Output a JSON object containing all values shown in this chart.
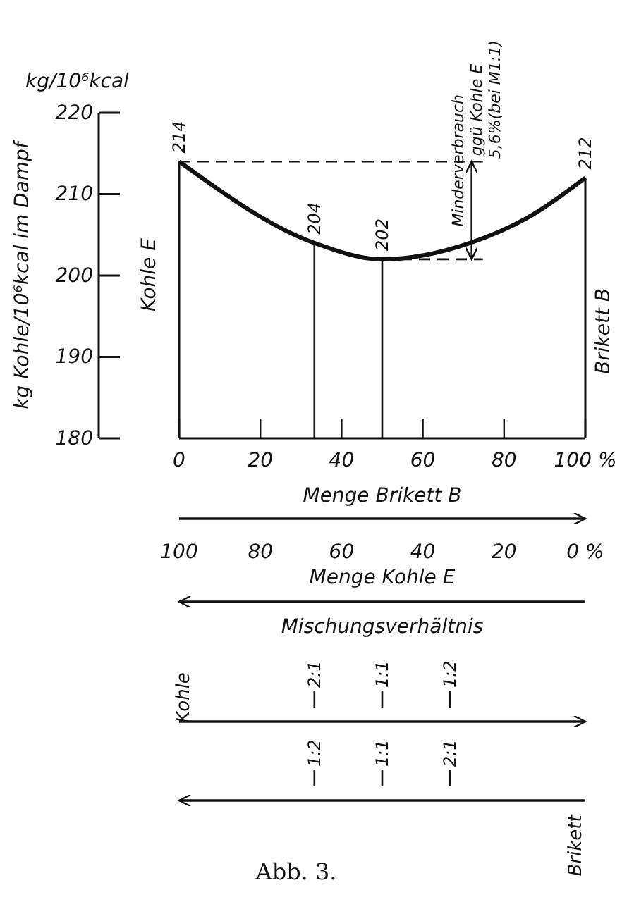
{
  "chart_data": {
    "type": "line",
    "ylabel": "kg Kohle/10⁶kcal im Dampf",
    "xlabel": "Menge Brikett B",
    "x2label": "Menge Kohle E",
    "xlim": [
      0,
      100
    ],
    "xticks": [
      0,
      20,
      40,
      60,
      80,
      {
        "value": 100,
        "label": "100 %"
      }
    ],
    "x2lim": [
      100,
      0
    ],
    "x2ticks": [
      100,
      80,
      60,
      40,
      20,
      {
        "value": 0,
        "label": "0 %"
      }
    ],
    "ylim": [
      180,
      220
    ],
    "yticks": [
      180,
      190,
      200,
      210,
      220
    ],
    "marker": "none",
    "line_style": "solid",
    "series": [
      {
        "color": "#111111",
        "x": [
          0,
          33.3,
          50,
          71.6,
          85.4,
          100
        ],
        "values": [
          214,
          204,
          202,
          204,
          207,
          212
        ],
        "value_labels": [
          "214",
          "204",
          "202",
          null,
          null,
          "212"
        ]
      }
    ],
    "ref_lines": [
      {
        "axis": "x",
        "value": 33.3,
        "line_style": "solid"
      },
      {
        "axis": "x",
        "value": 50,
        "line_style": "solid"
      },
      {
        "axis": "y",
        "value": 214,
        "line_style": "dashed"
      },
      {
        "axis": "y",
        "value": 202,
        "line_style": "dashed"
      }
    ],
    "annotations": [
      "kg/10⁶kcal",
      "Minderverbrauch",
      "ggü Kohle E",
      "5,6%(bei M1:1)",
      "Kohle E",
      "Brikett B",
      "Mischungsverhältnis",
      "Kohle",
      "Brikett",
      "2:1",
      "1:1",
      "1:2",
      "1:2",
      "1:1",
      "2:1",
      "Abb. 3."
    ]
  }
}
